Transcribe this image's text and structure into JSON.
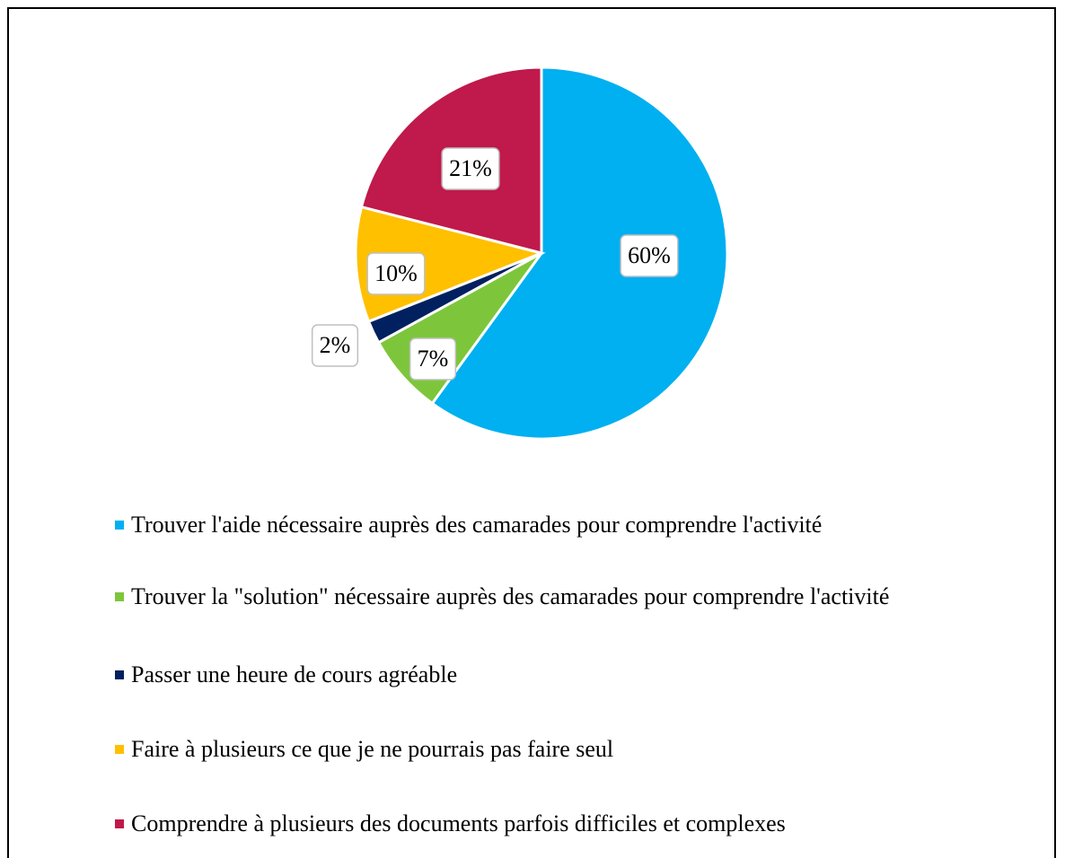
{
  "chart_data": {
    "type": "pie",
    "categories": [
      "Trouver l'aide nécessaire auprès des camarades pour comprendre l'activité",
      "Trouver la \"solution\" nécessaire auprès des camarades pour comprendre l'activité",
      "Passer une heure de cours agréable",
      "Faire à plusieurs ce que je ne pourrais pas faire seul",
      "Comprendre à plusieurs des documents parfois difficiles et complexes"
    ],
    "values": [
      60,
      7,
      2,
      10,
      21
    ],
    "value_labels": [
      "60%",
      "7%",
      "2%",
      "10%",
      "21%"
    ],
    "colors": [
      "#00b0f0",
      "#7dc63b",
      "#002060",
      "#ffc000",
      "#c0194b"
    ],
    "legend": "bottom"
  }
}
